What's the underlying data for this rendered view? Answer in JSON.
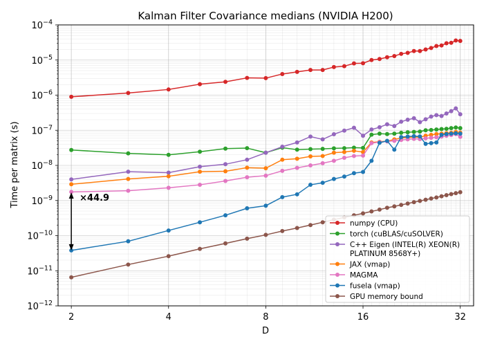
{
  "chart_data": {
    "type": "line",
    "title": "Kalman Filter Covariance medians (NVIDIA H200)",
    "xlabel": "D",
    "ylabel": "Time per matrix (s)",
    "xscale": "log2",
    "yscale": "log10",
    "xlim": [
      1.82,
      35.2
    ],
    "ylim": [
      1e-12,
      0.0001
    ],
    "grid": true,
    "legend_position": "lower-right",
    "x_ticks": [
      {
        "value": 2,
        "label": "2"
      },
      {
        "value": 4,
        "label": "4"
      },
      {
        "value": 8,
        "label": "8"
      },
      {
        "value": 16,
        "label": "16"
      },
      {
        "value": 32,
        "label": "32"
      }
    ],
    "y_ticks": [
      {
        "value": 1e-12,
        "base": "10",
        "exp": "−12"
      },
      {
        "value": 1e-11,
        "base": "10",
        "exp": "−11"
      },
      {
        "value": 1e-10,
        "base": "10",
        "exp": "−10"
      },
      {
        "value": 1e-09,
        "base": "10",
        "exp": "−9"
      },
      {
        "value": 1e-08,
        "base": "10",
        "exp": "−8"
      },
      {
        "value": 1e-07,
        "base": "10",
        "exp": "−7"
      },
      {
        "value": 1e-06,
        "base": "10",
        "exp": "−6"
      },
      {
        "value": 1e-05,
        "base": "10",
        "exp": "−5"
      },
      {
        "value": 0.0001,
        "base": "10",
        "exp": "−4"
      }
    ],
    "annotation": {
      "text": "×44.9",
      "x": 2,
      "y_top": 1.7e-09,
      "y_bottom": 3.8e-11
    },
    "series": [
      {
        "name": "numpy (CPU)",
        "color": "#d62728",
        "x": [
          2,
          3,
          4,
          5,
          6,
          7,
          8,
          9,
          10,
          11,
          12,
          13,
          14,
          15,
          16,
          17,
          18,
          19,
          20,
          21,
          22,
          23,
          24,
          25,
          26,
          27,
          28,
          29,
          30,
          31,
          32
        ],
        "y": [
          9e-07,
          1.15e-06,
          1.45e-06,
          2.05e-06,
          2.4e-06,
          3.1e-06,
          3.05e-06,
          4e-06,
          4.6e-06,
          5.2e-06,
          5.2e-06,
          6.3e-06,
          6.7e-06,
          8e-06,
          8.1e-06,
          1e-05,
          1.07e-05,
          1.2e-05,
          1.3e-05,
          1.5e-05,
          1.6e-05,
          1.8e-05,
          1.8e-05,
          2e-05,
          2.2e-05,
          2.5e-05,
          2.6e-05,
          3e-05,
          3.1e-05,
          3.6e-05,
          3.5e-05
        ]
      },
      {
        "name": "torch (cuBLAS/cuSOLVER)",
        "color": "#2ca02c",
        "x": [
          2,
          3,
          4,
          5,
          6,
          7,
          8,
          9,
          10,
          11,
          12,
          13,
          14,
          15,
          16,
          17,
          18,
          19,
          20,
          21,
          22,
          23,
          24,
          25,
          26,
          27,
          28,
          29,
          30,
          31,
          32
        ],
        "y": [
          2.75e-08,
          2.2e-08,
          2e-08,
          2.45e-08,
          3e-08,
          3.1e-08,
          2.3e-08,
          3.2e-08,
          2.8e-08,
          2.9e-08,
          2.95e-08,
          3.05e-08,
          3.1e-08,
          3.2e-08,
          3.15e-08,
          7.5e-08,
          8e-08,
          7.8e-08,
          8e-08,
          8.5e-08,
          8.8e-08,
          9e-08,
          9.2e-08,
          1e-07,
          1.02e-07,
          1.05e-07,
          1.08e-07,
          1.1e-07,
          1.15e-07,
          1.2e-07,
          1.15e-07
        ]
      },
      {
        "name": "C++ Eigen (INTEL(R) XEON(R) PLATINUM 8568Y+)",
        "color": "#9467bd",
        "x": [
          2,
          3,
          4,
          5,
          6,
          7,
          8,
          9,
          10,
          11,
          12,
          13,
          14,
          15,
          16,
          17,
          18,
          19,
          20,
          21,
          22,
          23,
          24,
          25,
          26,
          27,
          28,
          29,
          30,
          31,
          32
        ],
        "y": [
          4e-09,
          6.6e-09,
          6.2e-09,
          9.2e-09,
          1.08e-08,
          1.45e-08,
          2.3e-08,
          3.4e-08,
          4.5e-08,
          6.6e-08,
          5.5e-08,
          7.7e-08,
          9.8e-08,
          1.18e-07,
          7e-08,
          1.05e-07,
          1.22e-07,
          1.48e-07,
          1.32e-07,
          1.75e-07,
          2e-07,
          2.2e-07,
          1.7e-07,
          2.05e-07,
          2.45e-07,
          2.7e-07,
          2.55e-07,
          3e-07,
          3.5e-07,
          4.2e-07,
          2.85e-07
        ]
      },
      {
        "name": "JAX (vmap)",
        "color": "#ff7f0e",
        "x": [
          2,
          3,
          4,
          5,
          6,
          7,
          8,
          9,
          10,
          11,
          12,
          13,
          14,
          15,
          16,
          17,
          18,
          19,
          20,
          21,
          22,
          23,
          24,
          25,
          26,
          27,
          28,
          29,
          30,
          31,
          32
        ],
        "y": [
          2.9e-09,
          4.1e-09,
          4.9e-09,
          6.6e-09,
          6.8e-09,
          8.6e-09,
          8.3e-09,
          1.45e-08,
          1.55e-08,
          1.8e-08,
          1.85e-08,
          2.3e-08,
          2.4e-08,
          2.6e-08,
          2.4e-08,
          4.5e-08,
          4.7e-08,
          4.9e-08,
          5.5e-08,
          6e-08,
          6.2e-08,
          6.4e-08,
          6.3e-08,
          7e-08,
          7.4e-08,
          7.8e-08,
          8e-08,
          8.3e-08,
          8.5e-08,
          9e-08,
          8.6e-08
        ]
      },
      {
        "name": "MAGMA",
        "color": "#e377c2",
        "x": [
          2,
          3,
          4,
          5,
          6,
          7,
          8,
          9,
          10,
          11,
          12,
          13,
          14,
          15,
          16,
          17,
          18,
          19,
          20,
          21,
          22,
          23,
          24,
          25,
          26,
          27,
          28,
          29,
          30,
          31,
          32
        ],
        "y": [
          1.75e-09,
          1.9e-09,
          2.3e-09,
          2.8e-09,
          3.6e-09,
          4.6e-09,
          5.1e-09,
          7e-09,
          8.5e-09,
          1e-08,
          1.15e-08,
          1.35e-08,
          1.65e-08,
          1.85e-08,
          1.9e-08,
          4.3e-08,
          4.6e-08,
          4.8e-08,
          5e-08,
          5.3e-08,
          5.5e-08,
          5.7e-08,
          5.6e-08,
          5.9e-08,
          6.1e-08,
          6.3e-08,
          6.6e-08,
          7e-08,
          7.3e-08,
          7.8e-08,
          6.5e-08
        ]
      },
      {
        "name": "fusela (vmap)",
        "color": "#1f77b4",
        "x": [
          2,
          3,
          4,
          5,
          6,
          7,
          8,
          9,
          10,
          11,
          12,
          13,
          14,
          15,
          16,
          17,
          18,
          19,
          20,
          21,
          22,
          23,
          24,
          25,
          26,
          27,
          28,
          29,
          30,
          31,
          32
        ],
        "y": [
          3.8e-11,
          6.9e-11,
          1.4e-10,
          2.4e-10,
          3.8e-10,
          6e-10,
          7.1e-10,
          1.25e-09,
          1.5e-09,
          2.8e-09,
          3.2e-09,
          4.1e-09,
          4.8e-09,
          6e-09,
          6.5e-09,
          1.35e-08,
          4.4e-08,
          5e-08,
          2.8e-08,
          6.4e-08,
          6.6e-08,
          6.8e-08,
          6.7e-08,
          4.1e-08,
          4.3e-08,
          4.5e-08,
          7.4e-08,
          7.8e-08,
          8e-08,
          8.2e-08,
          8e-08
        ]
      },
      {
        "name": "GPU memory bound",
        "color": "#8c564b",
        "x": [
          2,
          3,
          4,
          5,
          6,
          7,
          8,
          9,
          10,
          11,
          12,
          13,
          14,
          15,
          16,
          17,
          18,
          19,
          20,
          21,
          22,
          23,
          24,
          25,
          26,
          27,
          28,
          29,
          30,
          31,
          32
        ],
        "y": [
          6.5e-12,
          1.5e-11,
          2.6e-11,
          4.2e-11,
          6e-11,
          8.2e-11,
          1.05e-10,
          1.35e-10,
          1.65e-10,
          2e-10,
          2.4e-10,
          2.85e-10,
          3.3e-10,
          3.8e-10,
          4.3e-10,
          4.9e-10,
          5.5e-10,
          6.2e-10,
          6.8e-10,
          7.5e-10,
          8.2e-10,
          9e-10,
          9.7e-10,
          1.05e-09,
          1.14e-09,
          1.22e-09,
          1.32e-09,
          1.42e-09,
          1.52e-09,
          1.62e-09,
          1.72e-09
        ]
      }
    ],
    "legend": [
      {
        "lines": [
          "numpy (CPU)"
        ],
        "color": "#d62728"
      },
      {
        "lines": [
          "torch (cuBLAS/cuSOLVER)"
        ],
        "color": "#2ca02c"
      },
      {
        "lines": [
          "C++ Eigen (INTEL(R) XEON(R)",
          "PLATINUM 8568Y+)"
        ],
        "color": "#9467bd"
      },
      {
        "lines": [
          "JAX (vmap)"
        ],
        "color": "#ff7f0e"
      },
      {
        "lines": [
          "MAGMA"
        ],
        "color": "#e377c2"
      },
      {
        "lines": [
          "fusela (vmap)"
        ],
        "color": "#1f77b4"
      },
      {
        "lines": [
          "GPU memory bound"
        ],
        "color": "#8c564b"
      }
    ]
  }
}
